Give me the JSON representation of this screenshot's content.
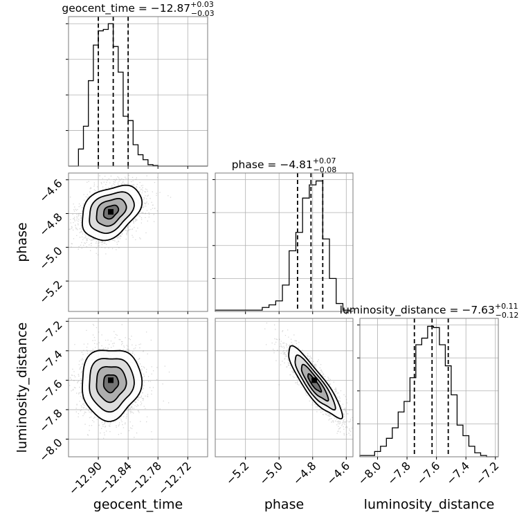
{
  "chart_data": {
    "type": "corner",
    "parameters": [
      {
        "name": "geocent_time",
        "label": "geocent_time",
        "title": {
          "lhs": "geocent_time = ",
          "median": "−12.87",
          "plus": "+0.03",
          "minus": "−0.03"
        },
        "range": [
          -12.96,
          -12.68
        ],
        "ticks": [
          -12.9,
          -12.84,
          -12.78,
          -12.72
        ],
        "tick_labels": [
          "−12.90",
          "−12.84",
          "−12.78",
          "−12.72"
        ],
        "median": -12.87,
        "quantiles": [
          -12.9,
          -12.87,
          -12.84
        ],
        "hist_bins": [
          -12.96,
          -12.94,
          -12.93,
          -12.92,
          -12.91,
          -12.9,
          -12.89,
          -12.88,
          -12.87,
          -12.86,
          -12.85,
          -12.84,
          -12.83,
          -12.82,
          -12.81,
          -12.8,
          -12.79,
          -12.78,
          -12.77,
          -12.76,
          -12.75,
          -12.68
        ],
        "hist_counts": [
          0,
          0.12,
          0.28,
          0.6,
          0.85,
          0.95,
          0.96,
          1.0,
          0.84,
          0.66,
          0.35,
          0.32,
          0.15,
          0.08,
          0.045,
          0.01,
          0.004,
          0,
          0,
          0,
          0
        ]
      },
      {
        "name": "phase",
        "label": "phase",
        "title": {
          "lhs": "phase = ",
          "median": "−4.81",
          "plus": "+0.07",
          "minus": "−0.08"
        },
        "range": [
          -5.38,
          -4.56
        ],
        "ticks": [
          -5.2,
          -5.0,
          -4.8,
          -4.6
        ],
        "tick_labels": [
          "−5.2",
          "−5.0",
          "−4.8",
          "−4.6"
        ],
        "median": -4.81,
        "quantiles": [
          -4.89,
          -4.81,
          -4.74
        ],
        "hist_bins": [
          -5.38,
          -5.1,
          -5.06,
          -5.02,
          -4.98,
          -4.94,
          -4.9,
          -4.86,
          -4.82,
          -4.78,
          -4.74,
          -4.7,
          -4.66,
          -4.62,
          -4.58,
          -4.56
        ],
        "hist_counts": [
          0.01,
          0.03,
          0.05,
          0.08,
          0.2,
          0.46,
          0.6,
          0.86,
          0.96,
          0.99,
          0.55,
          0.25,
          0.06,
          0.01,
          0
        ]
      },
      {
        "name": "luminosity_distance",
        "label": "luminosity_distance",
        "title": {
          "lhs": "luminosity_distance = ",
          "median": "−7.63",
          "plus": "+0.11",
          "minus": "−0.12"
        },
        "range": [
          -8.12,
          -7.18
        ],
        "ticks": [
          -8.0,
          -7.8,
          -7.6,
          -7.4,
          -7.2
        ],
        "tick_labels": [
          "−8.0",
          "−7.8",
          "−7.6",
          "−7.4",
          "−7.2"
        ],
        "median": -7.63,
        "quantiles": [
          -7.75,
          -7.63,
          -7.52
        ],
        "hist_bins": [
          -8.12,
          -8.02,
          -7.98,
          -7.94,
          -7.9,
          -7.86,
          -7.82,
          -7.78,
          -7.74,
          -7.7,
          -7.66,
          -7.62,
          -7.58,
          -7.54,
          -7.5,
          -7.46,
          -7.42,
          -7.38,
          -7.34,
          -7.3,
          -7.26,
          -7.18
        ],
        "hist_counts": [
          0.01,
          0.04,
          0.08,
          0.14,
          0.22,
          0.34,
          0.42,
          0.6,
          0.85,
          0.9,
          0.99,
          0.98,
          0.85,
          0.69,
          0.47,
          0.24,
          0.16,
          0.08,
          0.03,
          0.01,
          0
        ]
      }
    ],
    "pairs": [
      {
        "x": "geocent_time",
        "y": "phase",
        "center": [
          -12.875,
          -4.79
        ],
        "sigma": [
          0.03,
          0.08
        ],
        "rho": 0.35,
        "peak": [
          -12.875,
          -4.79
        ]
      },
      {
        "x": "geocent_time",
        "y": "luminosity_distance",
        "center": [
          -12.875,
          -7.62
        ],
        "sigma": [
          0.03,
          0.12
        ],
        "rho": 0.05,
        "peak": [
          -12.875,
          -7.6
        ]
      },
      {
        "x": "phase",
        "y": "luminosity_distance",
        "center": [
          -4.79,
          -7.62
        ],
        "sigma": [
          0.08,
          0.12
        ],
        "rho": -0.88,
        "peak": [
          -4.79,
          -7.6
        ]
      }
    ],
    "contour_levels_sigma": [
      0.5,
      1.0,
      1.5,
      2.0
    ],
    "grid": true
  }
}
